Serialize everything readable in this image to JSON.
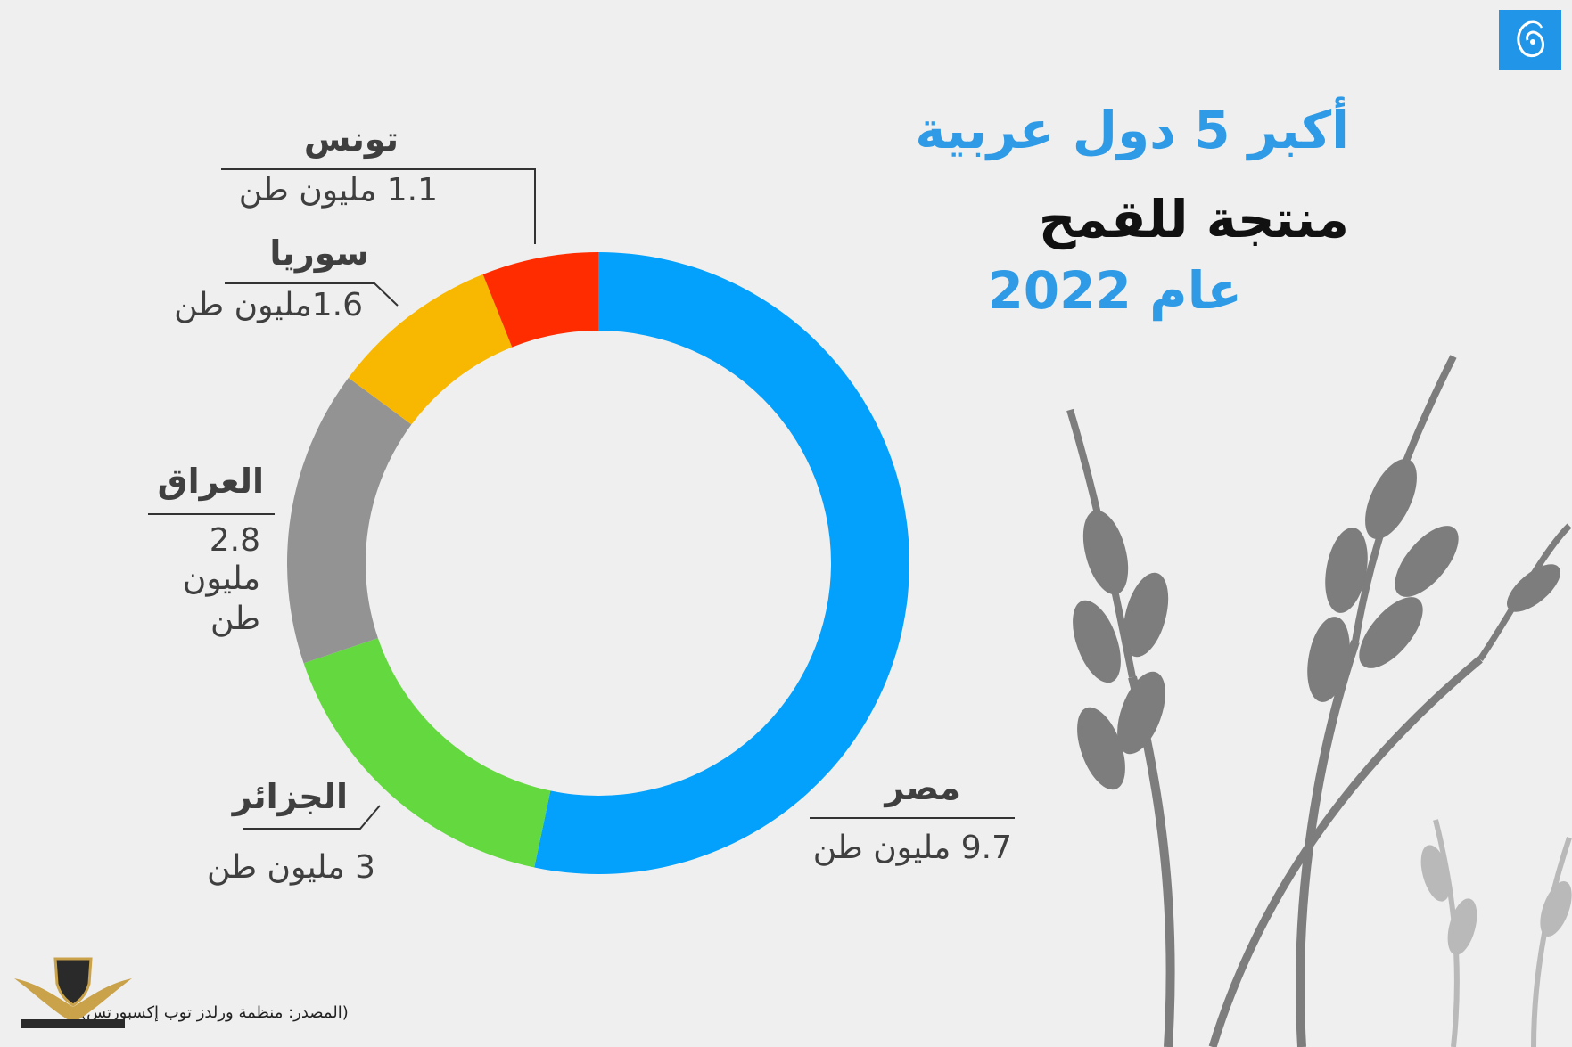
{
  "title": {
    "line1": "أكبر 5 دول عربية",
    "line2": "منتجة للقمح",
    "line3": "عام 2022"
  },
  "colors": {
    "title_blue": "#2f9be6",
    "title_dark": "#111111",
    "egypt": "#03a1fb",
    "algeria": "#63d93f",
    "iraq": "#939393",
    "syria": "#f8b700",
    "tunisia": "#ff2c00"
  },
  "chart_data": {
    "type": "pie",
    "unit": "مليون طن",
    "slices": [
      {
        "name": "مصر",
        "value": 9.7,
        "label": "9.7 مليون طن",
        "color": "#03a1fb"
      },
      {
        "name": "الجزائر",
        "value": 3,
        "label": "3 مليون طن",
        "color": "#63d93f"
      },
      {
        "name": "العراق",
        "value": 2.8,
        "label_lines": [
          "2.8",
          "مليون",
          "طن"
        ],
        "color": "#939393"
      },
      {
        "name": "سوريا",
        "value": 1.6,
        "label": "1.6مليون طن",
        "color": "#f8b700"
      },
      {
        "name": "تونس",
        "value": 1.1,
        "label": "1.1 مليون طن",
        "color": "#ff2c00"
      }
    ]
  },
  "source": "(المصدر: منظمة ورلدز توب إكسبورتس)",
  "logo_icon": "aljazeera-logo-icon",
  "watermark_icon": "forum-shield-watermark-icon",
  "decor_icon": "wheat-stalks-icon"
}
